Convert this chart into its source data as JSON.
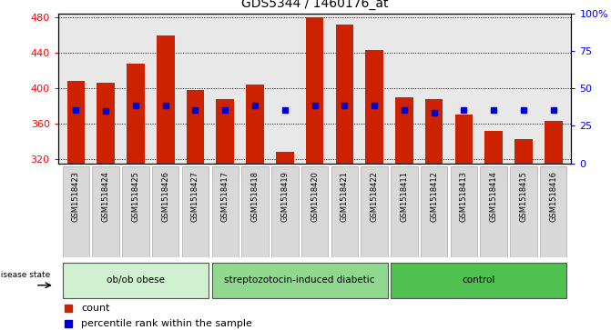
{
  "title": "GDS5344 / 1460176_at",
  "samples": [
    "GSM1518423",
    "GSM1518424",
    "GSM1518425",
    "GSM1518426",
    "GSM1518427",
    "GSM1518417",
    "GSM1518418",
    "GSM1518419",
    "GSM1518420",
    "GSM1518421",
    "GSM1518422",
    "GSM1518411",
    "GSM1518412",
    "GSM1518413",
    "GSM1518414",
    "GSM1518415",
    "GSM1518416"
  ],
  "bar_values": [
    408,
    406,
    428,
    460,
    398,
    388,
    404,
    328,
    480,
    472,
    443,
    390,
    388,
    370,
    352,
    342,
    363
  ],
  "percentile_values": [
    375,
    374,
    381,
    381,
    375,
    375,
    381,
    375,
    381,
    381,
    381,
    375,
    372,
    375,
    375,
    375,
    375
  ],
  "groups": [
    {
      "label": "ob/ob obese",
      "start": 0,
      "end": 5,
      "color": "#d0f0d0"
    },
    {
      "label": "streptozotocin-induced diabetic",
      "start": 5,
      "end": 11,
      "color": "#90d890"
    },
    {
      "label": "control",
      "start": 11,
      "end": 17,
      "color": "#50c050"
    }
  ],
  "ymin": 315,
  "ymax": 485,
  "yticks": [
    320,
    360,
    400,
    440,
    480
  ],
  "bar_color": "#cc2200",
  "percentile_color": "#0000cc",
  "background_color": "#e8e8e8",
  "right_yaxis_ticks": [
    0,
    25,
    50,
    75,
    100
  ],
  "right_yaxis_labels": [
    "0",
    "25",
    "50",
    "75",
    "100%"
  ]
}
